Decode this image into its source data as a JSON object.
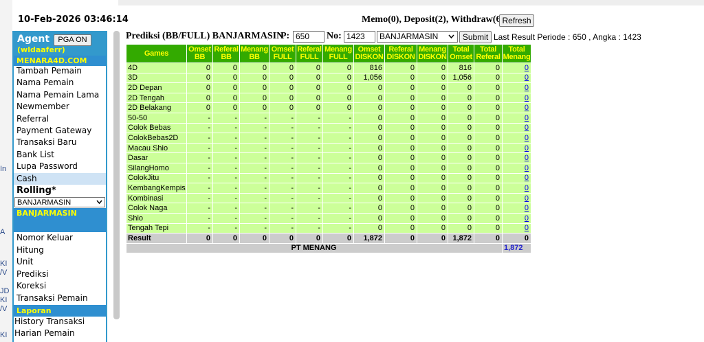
{
  "header": {
    "datetime": "10-Feb-2026 03:46:14",
    "status": "Memo(0), Deposit(2), Withdraw(6)",
    "refresh": "Refresh"
  },
  "background_window": {
    "fragments": [
      "In",
      "A",
      "KI",
      "/V",
      "JD",
      "KI",
      "/V",
      "KI"
    ]
  },
  "sidebar": {
    "agent": "Agent",
    "pga_button": "PGA ON",
    "username": "(wldaaferr)",
    "site": "MENARA4D.COM",
    "menu": [
      "Tambah Pemain",
      "Nama Pemain",
      "Nama Pemain Lama",
      "Newmember",
      "Referral",
      "Payment Gateway",
      "Transaksi Baru",
      "Bank List",
      "Lupa Password",
      "Cash"
    ],
    "rolling": "Rolling*",
    "market_select": "BANJARMASIN",
    "market_heading": "BANJARMASIN",
    "market_menu": [
      "Nomor Keluar",
      "Hitung",
      "Unit",
      "Prediksi",
      "Koreksi",
      "Transaksi Pemain"
    ],
    "report_heading": "Laporan",
    "report_menu": [
      "History Transaksi",
      "Harian Pemain"
    ]
  },
  "form": {
    "title": "Prediksi (BB/FULL) BANJARMASIN",
    "period_label": "P:",
    "period": "650",
    "number_label": "No:",
    "number": "1423",
    "market": "BANJARMASIN",
    "submit": "Submit",
    "last_result": "Last Result Periode : 650 , Angka : 1423"
  },
  "table": {
    "columns": [
      "Games",
      "Omset BB",
      "Referal BB",
      "Menang BB",
      "Omset FULL",
      "Referal FULL",
      "Menang FULL",
      "Omset DISKON",
      "Referal DISKON",
      "Menang DISKON",
      "Total Omset",
      "Total Referal",
      "Total Menang"
    ],
    "rows": [
      [
        "4D",
        "0",
        "0",
        "0",
        "0",
        "0",
        "0",
        "816",
        "0",
        "0",
        "816",
        "0",
        "0"
      ],
      [
        "3D",
        "0",
        "0",
        "0",
        "0",
        "0",
        "0",
        "1,056",
        "0",
        "0",
        "1,056",
        "0",
        "0"
      ],
      [
        "2D Depan",
        "0",
        "0",
        "0",
        "0",
        "0",
        "0",
        "0",
        "0",
        "0",
        "0",
        "0",
        "0"
      ],
      [
        "2D Tengah",
        "0",
        "0",
        "0",
        "0",
        "0",
        "0",
        "0",
        "0",
        "0",
        "0",
        "0",
        "0"
      ],
      [
        "2D Belakang",
        "0",
        "0",
        "0",
        "0",
        "0",
        "0",
        "0",
        "0",
        "0",
        "0",
        "0",
        "0"
      ],
      [
        "50-50",
        "-",
        "-",
        "-",
        "-",
        "-",
        "-",
        "0",
        "0",
        "0",
        "0",
        "0",
        "0"
      ],
      [
        "Colok Bebas",
        "-",
        "-",
        "-",
        "-",
        "-",
        "-",
        "0",
        "0",
        "0",
        "0",
        "0",
        "0"
      ],
      [
        "ColokBebas2D",
        "-",
        "-",
        "-",
        "-",
        "-",
        "-",
        "0",
        "0",
        "0",
        "0",
        "0",
        "0"
      ],
      [
        "Macau Shio",
        "-",
        "-",
        "-",
        "-",
        "-",
        "-",
        "0",
        "0",
        "0",
        "0",
        "0",
        "0"
      ],
      [
        "Dasar",
        "-",
        "-",
        "-",
        "-",
        "-",
        "-",
        "0",
        "0",
        "0",
        "0",
        "0",
        "0"
      ],
      [
        "SilangHomo",
        "-",
        "-",
        "-",
        "-",
        "-",
        "-",
        "0",
        "0",
        "0",
        "0",
        "0",
        "0"
      ],
      [
        "ColokJitu",
        "-",
        "-",
        "-",
        "-",
        "-",
        "-",
        "0",
        "0",
        "0",
        "0",
        "0",
        "0"
      ],
      [
        "KembangKempis",
        "-",
        "-",
        "-",
        "-",
        "-",
        "-",
        "0",
        "0",
        "0",
        "0",
        "0",
        "0"
      ],
      [
        "Kombinasi",
        "-",
        "-",
        "-",
        "-",
        "-",
        "-",
        "0",
        "0",
        "0",
        "0",
        "0",
        "0"
      ],
      [
        "Colok Naga",
        "-",
        "-",
        "-",
        "-",
        "-",
        "-",
        "0",
        "0",
        "0",
        "0",
        "0",
        "0"
      ],
      [
        "Shio",
        "-",
        "-",
        "-",
        "-",
        "-",
        "-",
        "0",
        "0",
        "0",
        "0",
        "0",
        "0"
      ],
      [
        "Tengah Tepi",
        "-",
        "-",
        "-",
        "-",
        "-",
        "-",
        "0",
        "0",
        "0",
        "0",
        "0",
        "0"
      ]
    ],
    "result": [
      "Result",
      "0",
      "0",
      "0",
      "0",
      "0",
      "0",
      "1,872",
      "0",
      "0",
      "1,872",
      "0",
      "0"
    ],
    "footer": {
      "label": "PT MENANG",
      "value": "1,872"
    }
  }
}
